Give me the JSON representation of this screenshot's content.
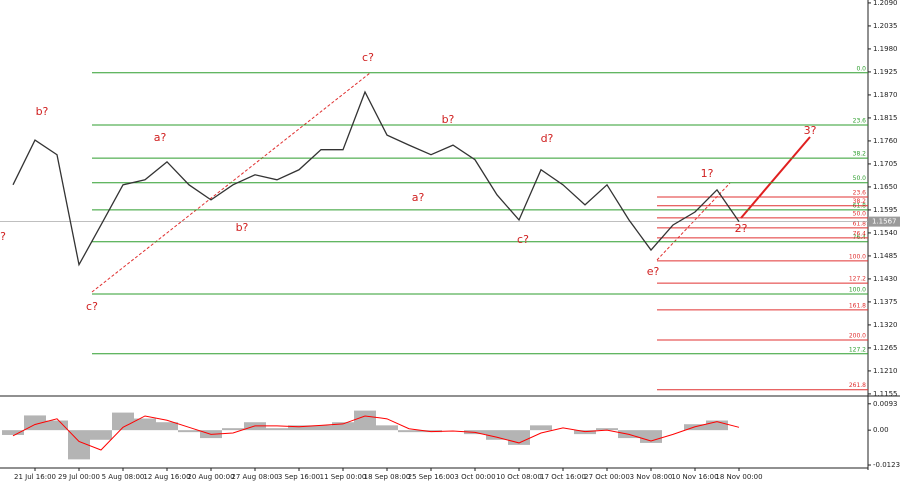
{
  "chart_data": [
    {
      "type": "line",
      "categories": [
        null,
        "21 Jul 16:00",
        null,
        "29 Jul 00:00",
        null,
        "5 Aug 08:00",
        null,
        "12 Aug 16:00",
        null,
        "20 Aug 00:00",
        null,
        "27 Aug 08:00",
        null,
        "3 Sep 16:00",
        null,
        "11 Sep 00:00",
        null,
        "18 Sep 08:00",
        null,
        "25 Sep 16:00",
        null,
        "3 Oct 00:00",
        null,
        "10 Oct 08:00",
        null,
        "17 Oct 16:00",
        null,
        "27 Oct 00:00",
        null,
        "3 Nov 08:00",
        null,
        "10 Nov 16:00",
        null,
        "18 Nov 00:00"
      ],
      "values": [
        1.1655,
        1.1762,
        1.1727,
        1.1464,
        1.1559,
        1.1655,
        1.1667,
        1.171,
        1.1655,
        1.1619,
        1.1655,
        1.1679,
        1.1667,
        1.1691,
        1.1739,
        1.1739,
        1.1877,
        1.1774,
        1.175,
        1.1727,
        1.175,
        1.1715,
        1.1631,
        1.1571,
        1.1691,
        1.1655,
        1.1607,
        1.1655,
        1.1571,
        1.1499,
        1.1559,
        1.159,
        1.1643,
        1.1567
      ],
      "color": "#333333",
      "ylim": [
        1.115,
        1.2097
      ],
      "yticks": [
        {
          "value": 1.209,
          "label": "1.2090"
        },
        1.2035,
        {
          "value": 1.198,
          "label": "1.1980"
        },
        1.1925,
        {
          "value": 1.187,
          "label": "1.1870"
        },
        1.1815,
        {
          "value": 1.176,
          "label": "1.1760"
        },
        1.1705,
        {
          "value": 1.165,
          "label": "1.1650"
        },
        1.1595,
        {
          "value": 1.154,
          "label": "1.1540"
        },
        1.1485,
        {
          "value": 1.143,
          "label": "1.1430"
        },
        1.1375,
        {
          "value": 1.132,
          "label": "1.1320"
        },
        1.1265,
        {
          "value": 1.121,
          "label": "1.1210"
        },
        1.1155
      ],
      "current_price": 1.1567,
      "levels": [
        {
          "label": "0.0",
          "value": 1.1923,
          "color": "#2e9e2e"
        },
        {
          "label": "23.6",
          "value": 1.1798,
          "color": "#2e9e2e"
        },
        {
          "label": "38.2",
          "value": 1.1719,
          "color": "#2e9e2e"
        },
        {
          "label": "50.0",
          "value": 1.166,
          "color": "#2e9e2e"
        },
        {
          "label": "61.8",
          "value": 1.1595,
          "color": "#2e9e2e"
        },
        {
          "label": "76.4",
          "value": 1.1519,
          "color": "#2e9e2e"
        },
        {
          "label": "100.0",
          "value": 1.1394,
          "color": "#2e9e2e"
        },
        {
          "label": "127.2",
          "value": 1.1251,
          "color": "#2e9e2e"
        },
        {
          "label": "23.6",
          "value": 1.1626,
          "color": "#e03030"
        },
        {
          "label": "38.2",
          "value": 1.1605,
          "color": "#e03030"
        },
        {
          "label": "50.0",
          "value": 1.1576,
          "color": "#e03030"
        },
        {
          "label": "61.8",
          "value": 1.1552,
          "color": "#e03030"
        },
        {
          "label": "76.4",
          "value": 1.1528,
          "color": "#e03030"
        },
        {
          "label": "100.0",
          "value": 1.1473,
          "color": "#e03030"
        },
        {
          "label": "127.2",
          "value": 1.142,
          "color": "#e03030"
        },
        {
          "label": "161.8",
          "value": 1.1356,
          "color": "#e03030"
        },
        {
          "label": "200.0",
          "value": 1.1284,
          "color": "#e03030"
        },
        {
          "label": "261.8",
          "value": 1.1165,
          "color": "#e03030"
        }
      ],
      "annotations": [
        "?",
        "b?",
        "c?",
        "a?",
        "b?",
        "c?",
        "a?",
        "b?",
        "c?",
        "d?",
        "e?",
        "1?",
        "2?",
        "3?"
      ],
      "annotation_color": "#d02020"
    },
    {
      "type": "bar",
      "values": [
        -0.0017,
        0.0052,
        0.0034,
        -0.0103,
        -0.0034,
        0.0062,
        0.0041,
        0.0028,
        -0.0007,
        -0.0028,
        0.0007,
        0.0028,
        0.0007,
        0.0017,
        0.0017,
        0.0028,
        0.0069,
        0.0017,
        -0.0007,
        -0.0007,
        0,
        -0.0014,
        -0.0034,
        -0.0052,
        0.0017,
        0,
        -0.0014,
        0.0007,
        -0.0028,
        -0.0045,
        0,
        0.0021,
        0.0034,
        0
      ],
      "color": "#b4b4b4",
      "signal": {
        "values": [
          -0.002,
          0.002,
          0.004,
          -0.004,
          -0.007,
          0.001,
          0.005,
          0.0035,
          0.001,
          -0.0015,
          -0.001,
          0.0015,
          0.0015,
          0.0012,
          0.0017,
          0.0022,
          0.005,
          0.004,
          0.0005,
          -0.0005,
          -0.0003,
          -0.0008,
          -0.0025,
          -0.0045,
          -0.001,
          0.0008,
          -0.0005,
          0,
          -0.0015,
          -0.0038,
          -0.0015,
          0.0012,
          0.003,
          0.001
        ],
        "color": "#ff0000"
      },
      "ylim": [
        -0.013,
        0.0117
      ],
      "yticks": [
        0.0093,
        {
          "value": 0,
          "label": "0.00"
        },
        -0.0123
      ]
    }
  ]
}
